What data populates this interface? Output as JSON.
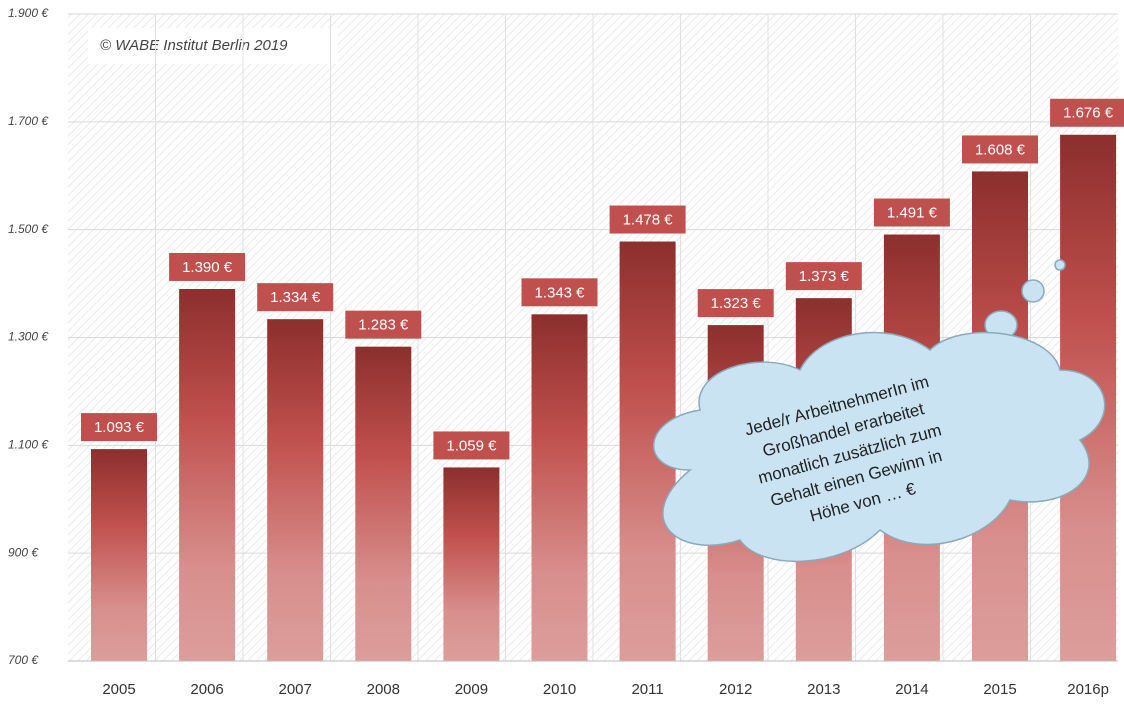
{
  "chart_data": {
    "type": "bar",
    "annotation": "© WABE Institut Berlin 2019",
    "cloud_text": [
      "Jede/r ArbeitnehmerIn im",
      "Großhandel erarbeitet",
      "monatlich zusätzlich zum",
      "Gehalt einen Gewinn in",
      "Höhe von … €"
    ],
    "categories": [
      "2005",
      "2006",
      "2007",
      "2008",
      "2009",
      "2010",
      "2011",
      "2012",
      "2013",
      "2014",
      "2015",
      "2016p"
    ],
    "values": [
      1093,
      1390,
      1334,
      1283,
      1059,
      1343,
      1478,
      1323,
      1373,
      1491,
      1608,
      1676
    ],
    "value_labels": [
      "1.093 €",
      "1.390 €",
      "1.334 €",
      "1.283 €",
      "1.059 €",
      "1.343 €",
      "1.478 €",
      "1.323 €",
      "1.373 €",
      "1.491 €",
      "1.608 €",
      "1.676 €"
    ],
    "color": "#c0504d",
    "ylim": [
      700,
      1900
    ],
    "yticks": [
      {
        "value": 700,
        "label": "700 €"
      },
      {
        "value": 900,
        "label": "900 €"
      },
      {
        "value": 1100,
        "label": "1.100 €"
      },
      {
        "value": 1300,
        "label": "1.300 €"
      },
      {
        "value": 1500,
        "label": "1.500 €"
      },
      {
        "value": 1700,
        "label": "1.700 €"
      },
      {
        "value": 1900,
        "label": "1.900 €"
      }
    ],
    "grid": true
  }
}
